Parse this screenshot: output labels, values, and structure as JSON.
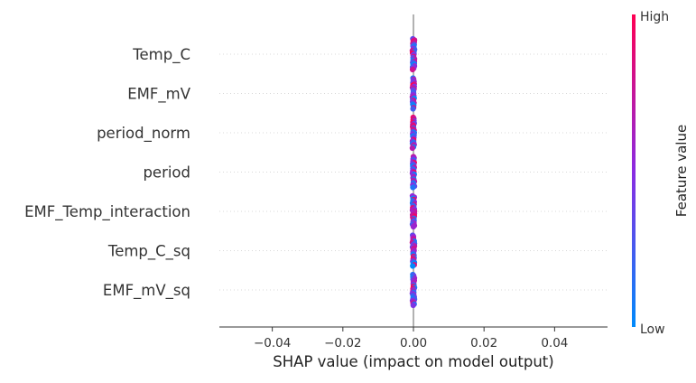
{
  "chart_data": {
    "type": "scatter",
    "subtype": "shap-beeswarm-summary",
    "title": "",
    "xlabel": "SHAP value (impact on model output)",
    "ylabel": "",
    "xlim": [
      -0.055,
      0.055
    ],
    "x_ticks": [
      -0.04,
      -0.02,
      0.0,
      0.02,
      0.04
    ],
    "x_tick_labels": [
      "−0.04",
      "−0.02",
      "0.00",
      "0.02",
      "0.04"
    ],
    "features": [
      "Temp_C",
      "EMF_mV",
      "period_norm",
      "period",
      "EMF_Temp_interaction",
      "Temp_C_sq",
      "EMF_mV_sq"
    ],
    "shap_values_note": "All SHAP values are 0.00 for every sample and feature",
    "shap_value_all": 0.0,
    "colorbar": {
      "label": "Feature value",
      "high_label": "High",
      "low_label": "Low",
      "low_color": "#008afb",
      "mid_color": "#8b2be2",
      "high_color": "#ff0052"
    },
    "zero_line": true,
    "row_guides": "dotted",
    "grid": false
  }
}
